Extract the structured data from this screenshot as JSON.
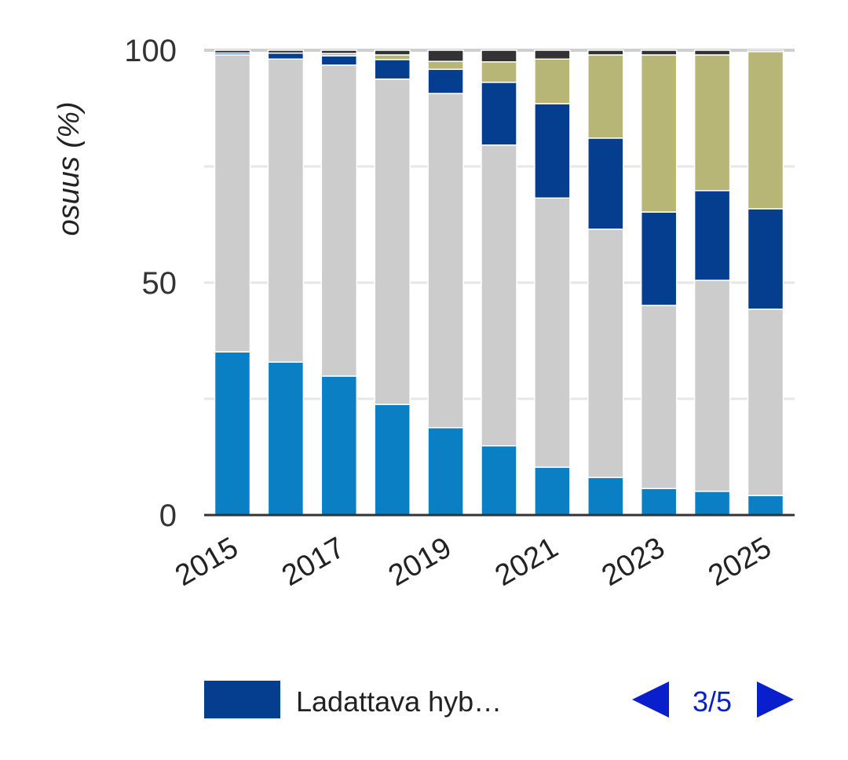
{
  "chart_data": {
    "type": "bar",
    "stacked": true,
    "title": "",
    "xlabel": "",
    "ylabel": "osuus (%)",
    "ylim": [
      0,
      100
    ],
    "yticks": [
      "0",
      "50",
      "100"
    ],
    "grid": true,
    "categories": [
      "2015",
      "2016",
      "2017",
      "2018",
      "2019",
      "2020",
      "2021",
      "2022",
      "2023",
      "2024",
      "2025"
    ],
    "xtick_labels": [
      "2015",
      "2017",
      "2019",
      "2021",
      "2023",
      "2025"
    ],
    "series": [
      {
        "name": "",
        "color": "#0a7fc4",
        "values": [
          35.1,
          32.9,
          29.9,
          23.8,
          18.8,
          14.9,
          10.3,
          8.1,
          5.7,
          5.1,
          4.2
        ]
      },
      {
        "name": "",
        "color": "#cccccc",
        "values": [
          63.9,
          65.2,
          66.9,
          70.0,
          71.9,
          64.7,
          57.9,
          53.4,
          39.4,
          45.4,
          40.1
        ]
      },
      {
        "name": "Ladattava hyb…",
        "color": "#053d8f",
        "values": [
          0.4,
          1.3,
          2.0,
          4.2,
          5.2,
          13.5,
          20.3,
          19.6,
          20.1,
          19.3,
          21.6
        ]
      },
      {
        "name": "",
        "color": "#b8b677",
        "values": [
          0,
          0,
          0.5,
          1.0,
          1.7,
          4.4,
          9.6,
          17.9,
          33.8,
          29.2,
          33.8
        ]
      },
      {
        "name": "",
        "color": "#333333",
        "values": [
          0.6,
          0.6,
          0.7,
          1.0,
          2.4,
          2.5,
          1.9,
          1.0,
          1.0,
          1.0,
          0.3
        ]
      }
    ],
    "legend": {
      "placement": "bottom",
      "visible_entry": "Ladattava hyb…",
      "visible_color": "#053d8f",
      "page": "3/5"
    }
  }
}
